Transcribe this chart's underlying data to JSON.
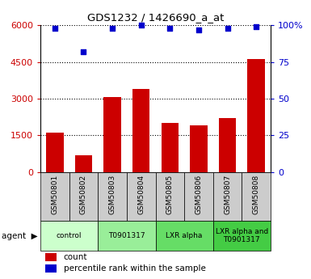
{
  "title": "GDS1232 / 1426690_a_at",
  "samples": [
    "GSM50801",
    "GSM50802",
    "GSM50803",
    "GSM50804",
    "GSM50805",
    "GSM50806",
    "GSM50807",
    "GSM50808"
  ],
  "counts": [
    1600,
    700,
    3050,
    3400,
    2000,
    1900,
    2200,
    4600
  ],
  "percentiles": [
    98,
    82,
    98,
    100,
    98,
    97,
    98,
    99
  ],
  "agents": [
    {
      "label": "control",
      "span": [
        0,
        2
      ],
      "color": "#ccffcc"
    },
    {
      "label": "T0901317",
      "span": [
        2,
        4
      ],
      "color": "#99ee99"
    },
    {
      "label": "LXR alpha",
      "span": [
        4,
        6
      ],
      "color": "#66dd66"
    },
    {
      "label": "LXR alpha and\nT0901317",
      "span": [
        6,
        8
      ],
      "color": "#44cc44"
    }
  ],
  "ylim_left": [
    0,
    6000
  ],
  "ylim_right": [
    0,
    100
  ],
  "yticks_left": [
    0,
    1500,
    3000,
    4500,
    6000
  ],
  "yticks_right": [
    0,
    25,
    50,
    75,
    100
  ],
  "ytick_labels_right": [
    "0",
    "25",
    "50",
    "75",
    "100%"
  ],
  "bar_color": "#cc0000",
  "dot_color": "#0000cc",
  "bar_width": 0.6,
  "grid_color": "#000000",
  "background_color": "#ffffff",
  "sample_box_color": "#cccccc",
  "legend_count_label": "count",
  "legend_pct_label": "percentile rank within the sample"
}
